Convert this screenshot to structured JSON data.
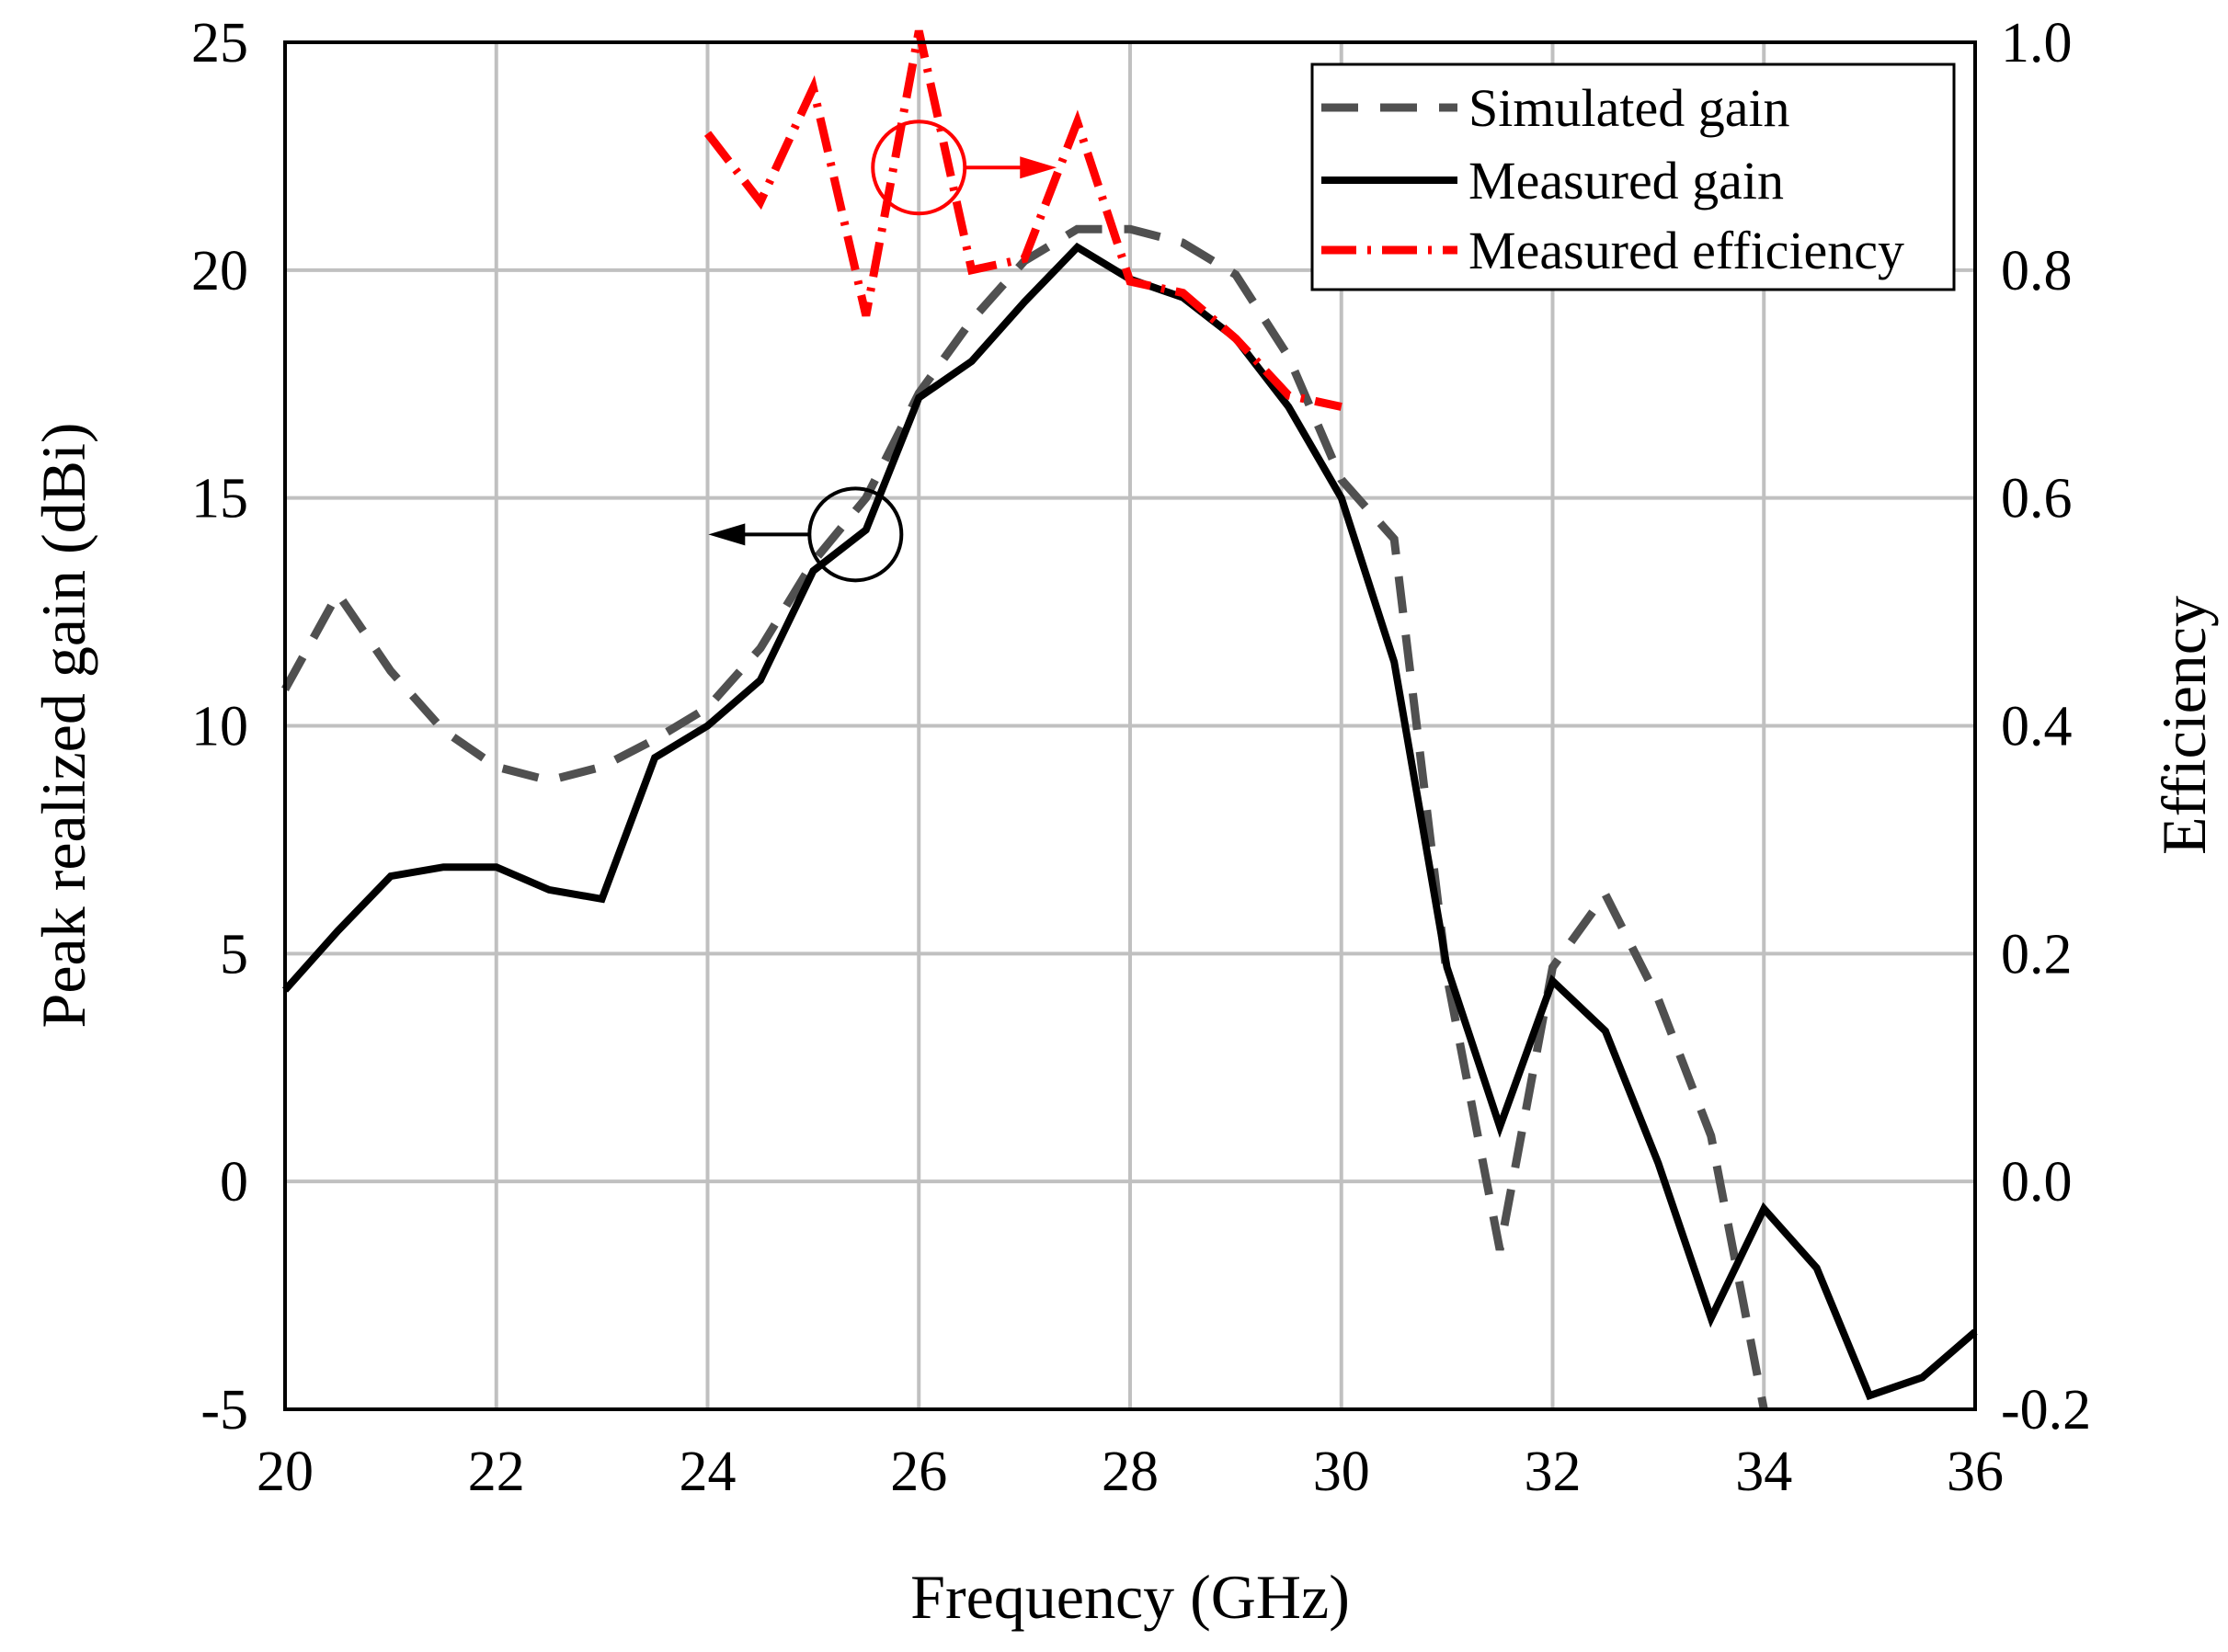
{
  "chart_data": {
    "type": "line",
    "xlabel": "Frequency (GHz)",
    "ylabel": "Peak realized gain (dBi)",
    "y2label": "Efficiency",
    "xlim": [
      20,
      36
    ],
    "ylim": [
      -5,
      25
    ],
    "y2lim": [
      -0.2,
      1.0
    ],
    "grid": true,
    "legend_position": "top-right",
    "x_ticks": [
      "20",
      "22",
      "24",
      "26",
      "28",
      "30",
      "32",
      "34",
      "36"
    ],
    "y_ticks": [
      "-5",
      "0",
      "5",
      "10",
      "15",
      "20",
      "25"
    ],
    "y2_ticks": [
      "-0.2",
      "0.0",
      "0.2",
      "0.4",
      "0.6",
      "0.8",
      "1.0"
    ],
    "series": [
      {
        "name": "Simulated gain",
        "axis": "left",
        "color": "#505050",
        "style": "dashed",
        "x": [
          20,
          20.5,
          21,
          21.5,
          22,
          22.5,
          23,
          23.5,
          24,
          24.5,
          25,
          25.5,
          26,
          26.5,
          27,
          27.5,
          28,
          28.5,
          29,
          29.5,
          30,
          30.5,
          31,
          31.5,
          32,
          32.5,
          33,
          33.5,
          34
        ],
        "values": [
          10.8,
          12.9,
          11.2,
          9.9,
          9.1,
          8.8,
          9.1,
          9.7,
          10.4,
          11.7,
          13.6,
          15.0,
          17.3,
          18.9,
          20.2,
          20.9,
          20.9,
          20.6,
          19.9,
          18.1,
          15.4,
          14.1,
          4.5,
          -1.5,
          4.7,
          6.3,
          4.0,
          1.0,
          -5.0
        ]
      },
      {
        "name": "Measured gain",
        "axis": "left",
        "color": "#000000",
        "style": "solid",
        "x": [
          20,
          20.5,
          21,
          21.5,
          22,
          22.5,
          23,
          23.5,
          24,
          24.5,
          25,
          25.5,
          26,
          26.5,
          27,
          27.5,
          28,
          28.5,
          29,
          29.5,
          30,
          30.5,
          31,
          31.5,
          32,
          32.5,
          33,
          33.5,
          34,
          34.5,
          35,
          35.5,
          36
        ],
        "values": [
          4.2,
          5.5,
          6.7,
          6.9,
          6.9,
          6.4,
          6.2,
          9.3,
          10.0,
          11.0,
          13.4,
          14.3,
          17.2,
          18.0,
          19.3,
          20.5,
          19.8,
          19.4,
          18.5,
          17.0,
          15.0,
          11.4,
          4.7,
          1.2,
          4.4,
          3.3,
          0.4,
          -3.0,
          -0.6,
          -1.9,
          -4.7,
          -4.3,
          -3.3
        ]
      },
      {
        "name": "Measured efficiency",
        "axis": "right",
        "color": "#ff0000",
        "style": "dashdot",
        "x": [
          24,
          24.5,
          25,
          25.5,
          26,
          26.5,
          27,
          27.5,
          28,
          28.5,
          29,
          29.5,
          30
        ],
        "values": [
          0.92,
          0.86,
          0.96,
          0.76,
          1.01,
          0.8,
          0.81,
          0.93,
          0.79,
          0.78,
          0.74,
          0.69,
          0.68
        ]
      }
    ],
    "annotations": [
      {
        "type": "circle-arrow",
        "label": "Measured gain → left axis",
        "x": 25.4,
        "y": 14.2,
        "points_to": "left",
        "color": "#000000"
      },
      {
        "type": "circle-arrow",
        "label": "Measured efficiency → right axis",
        "x": 26.0,
        "y2": 0.89,
        "points_to": "right",
        "color": "#ff0000"
      }
    ]
  }
}
